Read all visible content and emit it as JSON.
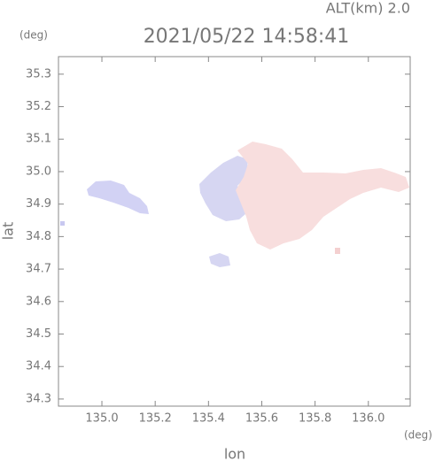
{
  "chart_data": {
    "type": "map",
    "title": "2021/05/22 14:58:41",
    "subtitle": "ALT(km) 2.0",
    "xlabel": "lon",
    "ylabel": "lat",
    "xunit": "(deg)",
    "yunit": "(deg)",
    "xlim": [
      134.837,
      136.157
    ],
    "ylim": [
      34.278,
      35.354
    ],
    "xticks": [
      {
        "value": 135,
        "label": "135.0"
      },
      135.2,
      135.4,
      135.6,
      135.8,
      {
        "value": 136,
        "label": "136.0"
      }
    ],
    "yticks": [
      34.3,
      34.4,
      34.5,
      34.6,
      34.7,
      34.8,
      34.9,
      {
        "value": 35,
        "label": "35.0"
      },
      35.1,
      35.2,
      35.3
    ]
  }
}
